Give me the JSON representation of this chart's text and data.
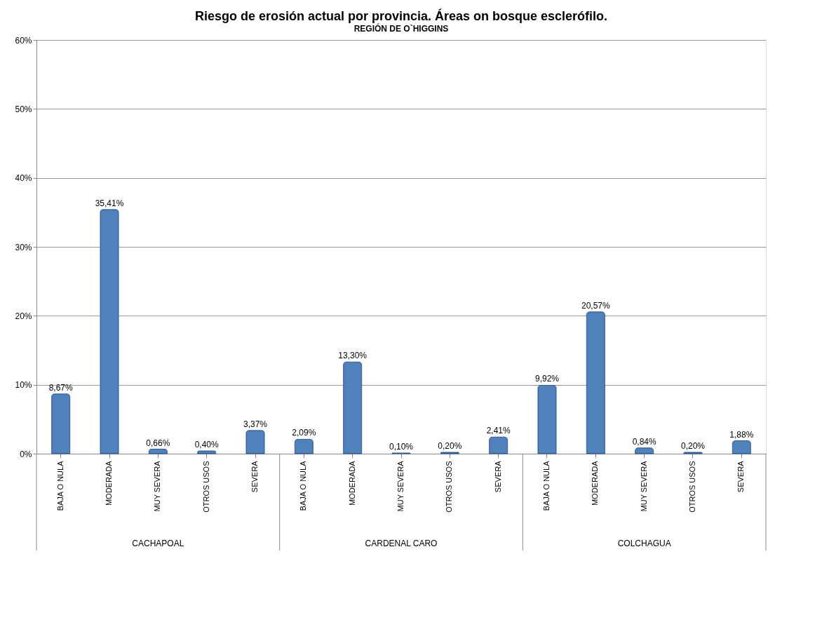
{
  "chart_data": {
    "type": "bar",
    "title": "Riesgo de erosión actual por provincia. Áreas on bosque esclerófilo.",
    "subtitle": "REGIÓN DE O`HIGGINS",
    "categories": [
      "BAJA O NULA",
      "MODERADA",
      "MUY SEVERA",
      "OTROS USOS",
      "SEVERA",
      "BAJA O NULA",
      "MODERADA",
      "MUY SEVERA",
      "OTROS USOS",
      "SEVERA",
      "BAJA O NULA",
      "MODERADA",
      "MUY SEVERA",
      "OTROS USOS",
      "SEVERA"
    ],
    "values": [
      8.67,
      35.41,
      0.66,
      0.4,
      3.37,
      2.09,
      13.3,
      0.1,
      0.2,
      2.41,
      9.92,
      20.57,
      0.84,
      0.2,
      1.88
    ],
    "value_labels": [
      "8,67%",
      "35,41%",
      "0,66%",
      "0,40%",
      "3,37%",
      "2,09%",
      "13,30%",
      "0,10%",
      "0,20%",
      "2,41%",
      "9,92%",
      "20,57%",
      "0,84%",
      "0,20%",
      "1,88%"
    ],
    "color": "#4f81bd",
    "ylim": [
      0,
      60
    ],
    "yticks": [
      {
        "value": 0,
        "label": "0%"
      },
      {
        "value": 10,
        "label": "10%"
      },
      {
        "value": 20,
        "label": "20%"
      },
      {
        "value": 30,
        "label": "30%"
      },
      {
        "value": 40,
        "label": "40%"
      },
      {
        "value": 50,
        "label": "50%"
      },
      {
        "value": 60,
        "label": "60%"
      }
    ],
    "grid": "y",
    "annotations": [
      "CACHAPOAL",
      "CARDENAL CARO",
      "COLCHAGUA"
    ]
  }
}
